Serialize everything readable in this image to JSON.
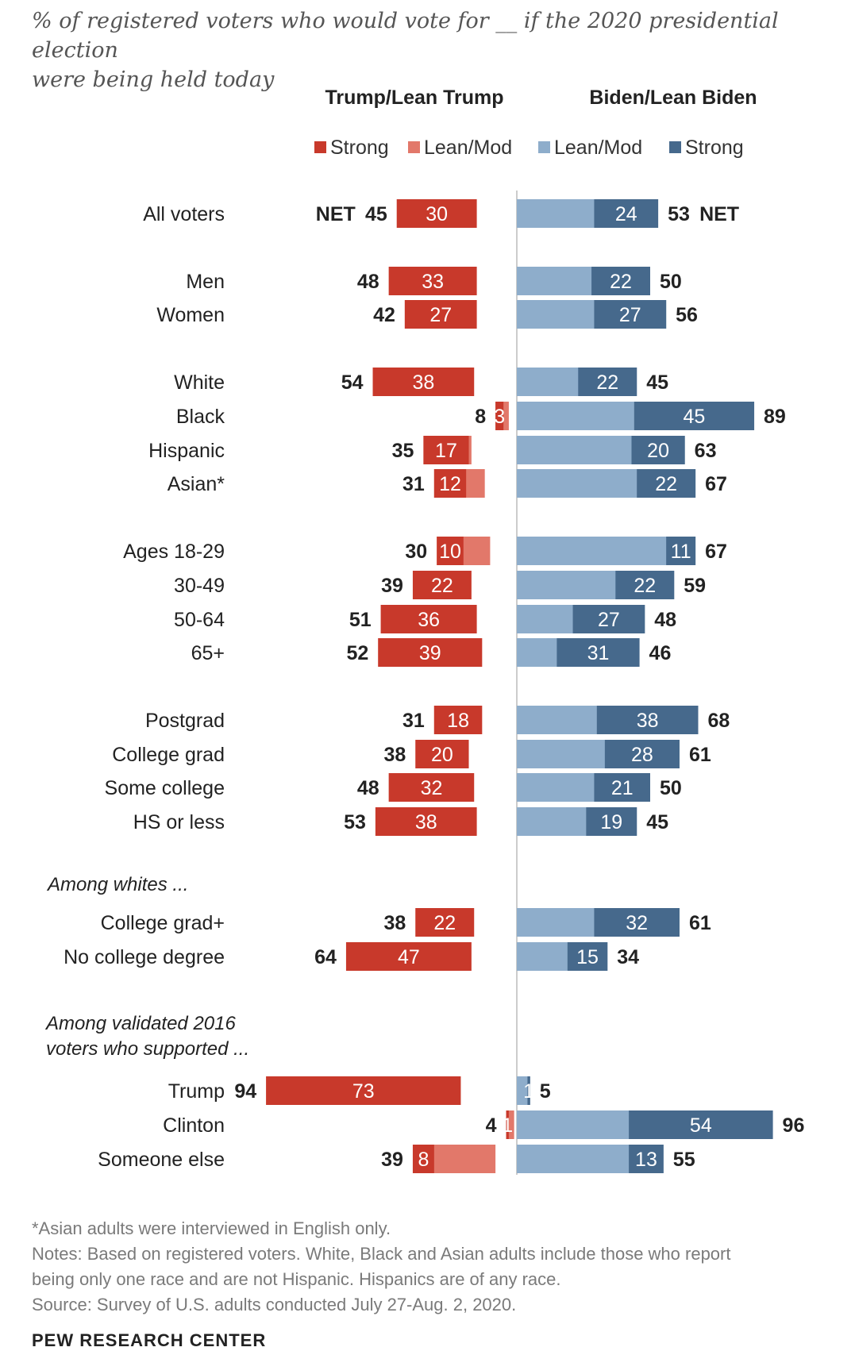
{
  "subtitle": {
    "line1": "% of registered voters who would vote for __ if the 2020 presidential election",
    "line2": "were being held today"
  },
  "colors": {
    "trump_strong": "#c8392b",
    "trump_lean": "#e2786a",
    "biden_lean": "#8eadcb",
    "biden_strong": "#46698c"
  },
  "chart_data": {
    "type": "bar",
    "orientation": "horizontal-diverging",
    "column_headers": {
      "left": "Trump/Lean Trump",
      "right": "Biden/Lean Biden"
    },
    "legend": [
      "Strong",
      "Lean/Mod",
      "Lean/Mod",
      "Strong"
    ],
    "net_label": "NET",
    "groups": [
      {
        "heading": "",
        "rows": [
          {
            "label": "All voters",
            "trump_total": 45,
            "trump_strong": 30,
            "biden_total": 53,
            "biden_strong": 24
          }
        ]
      },
      {
        "heading": "",
        "rows": [
          {
            "label": "Men",
            "trump_total": 48,
            "trump_strong": 33,
            "biden_total": 50,
            "biden_strong": 22
          },
          {
            "label": "Women",
            "trump_total": 42,
            "trump_strong": 27,
            "biden_total": 56,
            "biden_strong": 27
          }
        ]
      },
      {
        "heading": "",
        "rows": [
          {
            "label": "White",
            "trump_total": 54,
            "trump_strong": 38,
            "biden_total": 45,
            "biden_strong": 22
          },
          {
            "label": "Black",
            "trump_total": 8,
            "trump_strong": 3,
            "biden_total": 89,
            "biden_strong": 45
          },
          {
            "label": "Hispanic",
            "trump_total": 35,
            "trump_strong": 17,
            "biden_total": 63,
            "biden_strong": 20
          },
          {
            "label": "Asian*",
            "trump_total": 31,
            "trump_strong": 12,
            "biden_total": 67,
            "biden_strong": 22
          }
        ]
      },
      {
        "heading": "",
        "rows": [
          {
            "label": "Ages 18-29",
            "trump_total": 30,
            "trump_strong": 10,
            "biden_total": 67,
            "biden_strong": 11
          },
          {
            "label": "30-49",
            "trump_total": 39,
            "trump_strong": 22,
            "biden_total": 59,
            "biden_strong": 22
          },
          {
            "label": "50-64",
            "trump_total": 51,
            "trump_strong": 36,
            "biden_total": 48,
            "biden_strong": 27
          },
          {
            "label": "65+",
            "trump_total": 52,
            "trump_strong": 39,
            "biden_total": 46,
            "biden_strong": 31
          }
        ]
      },
      {
        "heading": "",
        "rows": [
          {
            "label": "Postgrad",
            "trump_total": 31,
            "trump_strong": 18,
            "biden_total": 68,
            "biden_strong": 38
          },
          {
            "label": "College grad",
            "trump_total": 38,
            "trump_strong": 20,
            "biden_total": 61,
            "biden_strong": 28
          },
          {
            "label": "Some college",
            "trump_total": 48,
            "trump_strong": 32,
            "biden_total": 50,
            "biden_strong": 21
          },
          {
            "label": "HS or less",
            "trump_total": 53,
            "trump_strong": 38,
            "biden_total": 45,
            "biden_strong": 19
          }
        ]
      },
      {
        "heading": "Among whites ...",
        "rows": [
          {
            "label": "College grad+",
            "trump_total": 38,
            "trump_strong": 22,
            "biden_total": 61,
            "biden_strong": 32
          },
          {
            "label": "No college degree",
            "trump_total": 64,
            "trump_strong": 47,
            "biden_total": 34,
            "biden_strong": 15
          }
        ]
      },
      {
        "heading": "Among validated 2016 voters who supported ...",
        "rows": [
          {
            "label": "Trump",
            "trump_total": 94,
            "trump_strong": 73,
            "biden_total": 5,
            "biden_strong": 1
          },
          {
            "label": "Clinton",
            "trump_total": 4,
            "trump_strong": 1,
            "biden_total": 96,
            "biden_strong": 54
          },
          {
            "label": "Someone else",
            "trump_total": 39,
            "trump_strong": 8,
            "biden_total": 55,
            "biden_strong": 13
          }
        ]
      }
    ]
  },
  "footer": {
    "footnote": "*Asian adults were interviewed in English only.",
    "notes_line1": "Notes: Based on registered voters. White, Black and Asian adults include those who report",
    "notes_line2": "being only one race and are not Hispanic. Hispanics are of any race.",
    "source": "Source: Survey of U.S. adults conducted July 27-Aug. 2, 2020.",
    "brand": "PEW RESEARCH CENTER"
  }
}
